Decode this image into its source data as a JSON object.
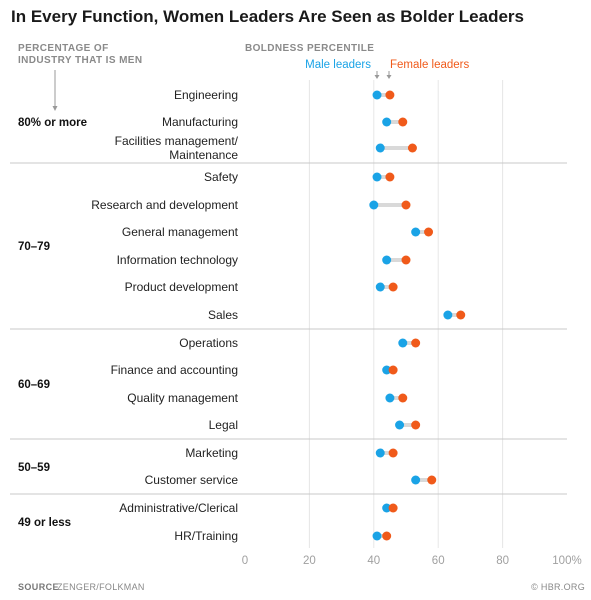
{
  "chart_data": {
    "type": "dumbbell",
    "title": "In Every Function, Women Leaders Are Seen as Bolder Leaders",
    "left_column_header": [
      "PERCENTAGE OF",
      "INDUSTRY THAT IS MEN"
    ],
    "right_column_header": "BOLDNESS PERCENTILE",
    "x_ticks": [
      "0",
      "20",
      "40",
      "60",
      "80",
      "100%"
    ],
    "xlim": [
      0,
      100
    ],
    "legend": {
      "male": "Male leaders",
      "female": "Female leaders",
      "placement": "top"
    },
    "colors": {
      "male": "#1aa3e6",
      "female": "#f05a1a",
      "connector": "#d9d9d9",
      "grid": "#e6e6e6",
      "separator": "#c8c8c8"
    },
    "groups": [
      {
        "label": "80% or more",
        "rows": [
          {
            "label": [
              "Engineering"
            ],
            "male": 41,
            "female": 45
          },
          {
            "label": [
              "Manufacturing"
            ],
            "male": 44,
            "female": 49
          },
          {
            "label": [
              "Facilities management/",
              "Maintenance"
            ],
            "male": 42,
            "female": 52
          }
        ]
      },
      {
        "label": "70–79",
        "rows": [
          {
            "label": [
              "Safety"
            ],
            "male": 41,
            "female": 45
          },
          {
            "label": [
              "Research and development"
            ],
            "male": 40,
            "female": 50
          },
          {
            "label": [
              "General management"
            ],
            "male": 53,
            "female": 57
          },
          {
            "label": [
              "Information technology"
            ],
            "male": 44,
            "female": 50
          },
          {
            "label": [
              "Product development"
            ],
            "male": 42,
            "female": 46
          },
          {
            "label": [
              "Sales"
            ],
            "male": 63,
            "female": 67
          }
        ]
      },
      {
        "label": "60–69",
        "rows": [
          {
            "label": [
              "Operations"
            ],
            "male": 49,
            "female": 53
          },
          {
            "label": [
              "Finance and accounting"
            ],
            "male": 44,
            "female": 46
          },
          {
            "label": [
              "Quality management"
            ],
            "male": 45,
            "female": 49
          },
          {
            "label": [
              "Legal"
            ],
            "male": 48,
            "female": 53
          }
        ]
      },
      {
        "label": "50–59",
        "rows": [
          {
            "label": [
              "Marketing"
            ],
            "male": 42,
            "female": 46
          },
          {
            "label": [
              "Customer service"
            ],
            "male": 53,
            "female": 58
          }
        ]
      },
      {
        "label": "49 or less",
        "rows": [
          {
            "label": [
              "Administrative/Clerical"
            ],
            "male": 44,
            "female": 46
          },
          {
            "label": [
              "HR/Training"
            ],
            "male": 41,
            "female": 44
          }
        ]
      }
    ]
  },
  "footer": {
    "source_label": "SOURCE",
    "source_text": "ZENGER/FOLKMAN",
    "credit": "© HBR.ORG"
  }
}
